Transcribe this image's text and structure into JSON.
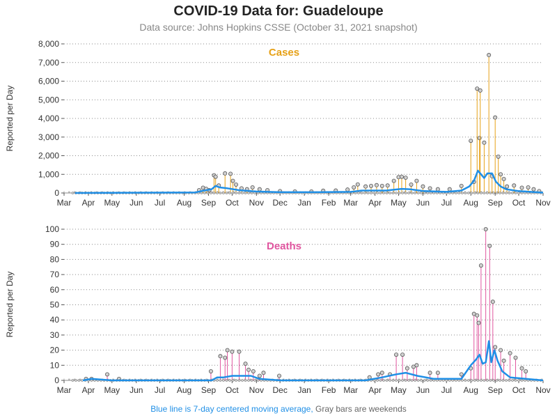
{
  "page": {
    "title": "COVID-19 Data for: Guadeloupe",
    "subtitle": "Data source: Johns Hopkins CSSE (October 31, 2021 snapshot)",
    "footnote_blue": "Blue line is 7-day centered moving average,",
    "footnote_gray": "Gray bars are weekends"
  },
  "colors": {
    "cases": "#e6a117",
    "deaths": "#e0559f",
    "moving_average": "#1f8fe6",
    "marker_fill": "#d0d0d0"
  },
  "chart_data": [
    {
      "type": "line",
      "name": "Cases",
      "ylabel": "Reported per Day",
      "ylim": [
        0,
        8000
      ],
      "yticks": [
        0,
        1000,
        2000,
        3000,
        4000,
        5000,
        6000,
        7000,
        8000
      ],
      "ytick_labels": [
        "0",
        "1,000",
        "2,000",
        "3,000",
        "4,000",
        "5,000",
        "6,000",
        "7,000",
        "8,000"
      ],
      "xlim": [
        "2020-03-01",
        "2021-11-01"
      ],
      "xtick_labels": [
        "Mar",
        "Apr",
        "May",
        "Jun",
        "Jul",
        "Aug",
        "Sep",
        "Oct",
        "Nov",
        "Dec",
        "Jan",
        "Feb",
        "Mar",
        "Apr",
        "May",
        "Jun",
        "Jul",
        "Aug",
        "Sep",
        "Oct",
        "Nov"
      ],
      "grid": "horizontal dotted",
      "points": [
        [
          "2020-08-20",
          150
        ],
        [
          "2020-08-25",
          280
        ],
        [
          "2020-08-29",
          220
        ],
        [
          "2020-09-02",
          150
        ],
        [
          "2020-09-08",
          950
        ],
        [
          "2020-09-10",
          870
        ],
        [
          "2020-09-14",
          400
        ],
        [
          "2020-09-22",
          1050
        ],
        [
          "2020-09-29",
          1030
        ],
        [
          "2020-10-02",
          650
        ],
        [
          "2020-10-06",
          450
        ],
        [
          "2020-10-13",
          250
        ],
        [
          "2020-10-20",
          200
        ],
        [
          "2020-10-27",
          300
        ],
        [
          "2020-11-05",
          200
        ],
        [
          "2020-11-15",
          150
        ],
        [
          "2020-12-01",
          100
        ],
        [
          "2020-12-20",
          80
        ],
        [
          "2021-01-10",
          80
        ],
        [
          "2021-01-25",
          120
        ],
        [
          "2021-02-10",
          130
        ],
        [
          "2021-02-25",
          180
        ],
        [
          "2021-03-05",
          300
        ],
        [
          "2021-03-10",
          460
        ],
        [
          "2021-03-20",
          350
        ],
        [
          "2021-03-27",
          380
        ],
        [
          "2021-04-03",
          420
        ],
        [
          "2021-04-10",
          380
        ],
        [
          "2021-04-17",
          400
        ],
        [
          "2021-04-25",
          650
        ],
        [
          "2021-05-01",
          850
        ],
        [
          "2021-05-05",
          870
        ],
        [
          "2021-05-10",
          820
        ],
        [
          "2021-05-17",
          450
        ],
        [
          "2021-05-24",
          650
        ],
        [
          "2021-06-01",
          350
        ],
        [
          "2021-06-10",
          250
        ],
        [
          "2021-06-20",
          200
        ],
        [
          "2021-07-05",
          200
        ],
        [
          "2021-07-20",
          380
        ],
        [
          "2021-08-01",
          2800
        ],
        [
          "2021-08-05",
          600
        ],
        [
          "2021-08-09",
          5600
        ],
        [
          "2021-08-12",
          2950
        ],
        [
          "2021-08-13",
          5500
        ],
        [
          "2021-08-18",
          2700
        ],
        [
          "2021-08-24",
          7400
        ],
        [
          "2021-08-28",
          900
        ],
        [
          "2021-09-01",
          4050
        ],
        [
          "2021-09-05",
          1950
        ],
        [
          "2021-09-08",
          1000
        ],
        [
          "2021-09-12",
          750
        ],
        [
          "2021-09-16",
          350
        ],
        [
          "2021-09-25",
          400
        ],
        [
          "2021-10-05",
          280
        ],
        [
          "2021-10-13",
          300
        ],
        [
          "2021-10-20",
          200
        ],
        [
          "2021-10-27",
          100
        ]
      ],
      "moving_average": [
        [
          "2020-03-15",
          0
        ],
        [
          "2020-08-15",
          30
        ],
        [
          "2020-08-25",
          120
        ],
        [
          "2020-09-05",
          200
        ],
        [
          "2020-09-10",
          380
        ],
        [
          "2020-09-15",
          300
        ],
        [
          "2020-09-25",
          250
        ],
        [
          "2020-10-10",
          150
        ],
        [
          "2020-11-01",
          80
        ],
        [
          "2020-12-01",
          40
        ],
        [
          "2021-01-15",
          40
        ],
        [
          "2021-03-01",
          60
        ],
        [
          "2021-03-15",
          130
        ],
        [
          "2021-04-15",
          130
        ],
        [
          "2021-05-05",
          220
        ],
        [
          "2021-05-15",
          200
        ],
        [
          "2021-06-01",
          110
        ],
        [
          "2021-07-01",
          60
        ],
        [
          "2021-07-20",
          130
        ],
        [
          "2021-07-30",
          350
        ],
        [
          "2021-08-05",
          650
        ],
        [
          "2021-08-10",
          1200
        ],
        [
          "2021-08-18",
          800
        ],
        [
          "2021-08-22",
          1050
        ],
        [
          "2021-08-28",
          1050
        ],
        [
          "2021-09-02",
          600
        ],
        [
          "2021-09-08",
          350
        ],
        [
          "2021-09-15",
          200
        ],
        [
          "2021-10-01",
          100
        ],
        [
          "2021-11-01",
          20
        ]
      ]
    },
    {
      "type": "line",
      "name": "Deaths",
      "ylabel": "Reported per Day",
      "ylim": [
        0,
        100
      ],
      "yticks": [
        0,
        10,
        20,
        30,
        40,
        50,
        60,
        70,
        80,
        90,
        100
      ],
      "ytick_labels": [
        "0",
        "10",
        "20",
        "30",
        "40",
        "50",
        "60",
        "70",
        "80",
        "90",
        "100"
      ],
      "xlim": [
        "2020-03-01",
        "2021-11-01"
      ],
      "xtick_labels": [
        "Mar",
        "Apr",
        "May",
        "Jun",
        "Jul",
        "Aug",
        "Sep",
        "Oct",
        "Nov",
        "Dec",
        "Jan",
        "Feb",
        "Mar",
        "Apr",
        "May",
        "Jun",
        "Jul",
        "Aug",
        "Sep",
        "Oct",
        "Nov"
      ],
      "grid": "horizontal dotted",
      "points": [
        [
          "2020-03-29",
          1
        ],
        [
          "2020-04-05",
          1
        ],
        [
          "2020-04-25",
          4
        ],
        [
          "2020-05-10",
          1
        ],
        [
          "2020-09-04",
          6
        ],
        [
          "2020-09-16",
          16
        ],
        [
          "2020-09-22",
          15
        ],
        [
          "2020-09-25",
          20
        ],
        [
          "2020-10-01",
          19
        ],
        [
          "2020-10-10",
          19
        ],
        [
          "2020-10-18",
          11
        ],
        [
          "2020-10-22",
          7
        ],
        [
          "2020-10-28",
          6
        ],
        [
          "2020-11-05",
          3
        ],
        [
          "2020-11-10",
          5
        ],
        [
          "2020-11-30",
          3
        ],
        [
          "2021-03-25",
          2
        ],
        [
          "2021-04-05",
          4
        ],
        [
          "2021-04-10",
          5
        ],
        [
          "2021-04-20",
          4
        ],
        [
          "2021-04-28",
          17
        ],
        [
          "2021-05-06",
          17
        ],
        [
          "2021-05-12",
          8
        ],
        [
          "2021-05-20",
          9
        ],
        [
          "2021-05-24",
          10
        ],
        [
          "2021-06-10",
          5
        ],
        [
          "2021-06-20",
          5
        ],
        [
          "2021-07-20",
          4
        ],
        [
          "2021-08-01",
          8
        ],
        [
          "2021-08-05",
          44
        ],
        [
          "2021-08-09",
          43
        ],
        [
          "2021-08-11",
          38
        ],
        [
          "2021-08-14",
          76
        ],
        [
          "2021-08-20",
          100
        ],
        [
          "2021-08-25",
          89
        ],
        [
          "2021-08-29",
          52
        ],
        [
          "2021-09-01",
          22
        ],
        [
          "2021-09-08",
          20
        ],
        [
          "2021-09-12",
          13
        ],
        [
          "2021-09-20",
          18
        ],
        [
          "2021-09-27",
          15
        ],
        [
          "2021-10-05",
          8
        ],
        [
          "2021-10-10",
          6
        ]
      ],
      "moving_average": [
        [
          "2020-03-25",
          0
        ],
        [
          "2020-04-05",
          1
        ],
        [
          "2020-05-01",
          0
        ],
        [
          "2020-09-05",
          0
        ],
        [
          "2020-09-12",
          2
        ],
        [
          "2020-09-20",
          2
        ],
        [
          "2020-10-01",
          3
        ],
        [
          "2020-10-25",
          3
        ],
        [
          "2020-11-05",
          1
        ],
        [
          "2020-12-01",
          0
        ],
        [
          "2021-03-20",
          0
        ],
        [
          "2021-04-10",
          2
        ],
        [
          "2021-04-28",
          4
        ],
        [
          "2021-05-10",
          5
        ],
        [
          "2021-05-25",
          3
        ],
        [
          "2021-06-15",
          1
        ],
        [
          "2021-07-20",
          1
        ],
        [
          "2021-08-01",
          10
        ],
        [
          "2021-08-08",
          14
        ],
        [
          "2021-08-12",
          17
        ],
        [
          "2021-08-16",
          11
        ],
        [
          "2021-08-20",
          12
        ],
        [
          "2021-08-24",
          26
        ],
        [
          "2021-08-27",
          12
        ],
        [
          "2021-08-31",
          20
        ],
        [
          "2021-09-04",
          13
        ],
        [
          "2021-09-10",
          6
        ],
        [
          "2021-09-20",
          2
        ],
        [
          "2021-10-10",
          1
        ],
        [
          "2021-11-01",
          0
        ]
      ]
    }
  ]
}
